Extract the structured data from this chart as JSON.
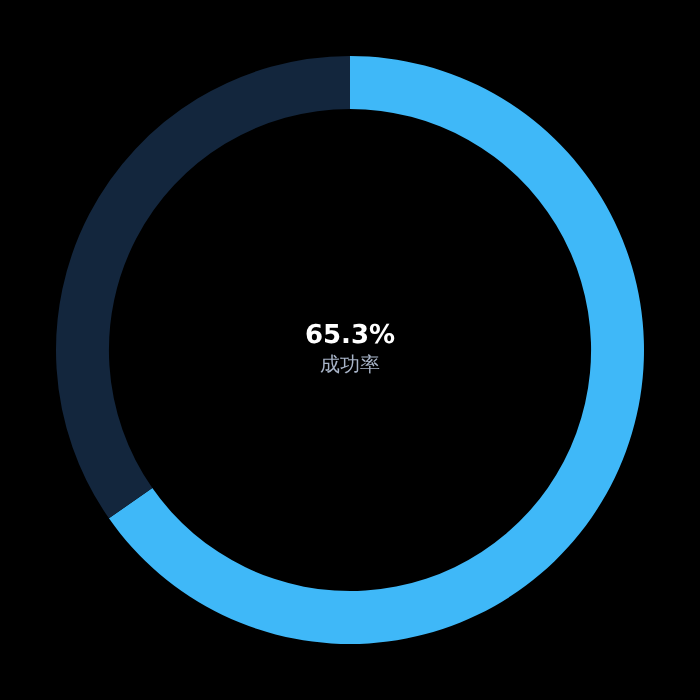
{
  "chart_data": {
    "type": "donut",
    "categories": [
      "成功率",
      null
    ],
    "values": [
      65.3,
      34.7
    ],
    "colors": [
      "#3fb8f8",
      "#13263d"
    ],
    "value_labels": [
      "65.3%",
      null
    ],
    "legend": false
  }
}
